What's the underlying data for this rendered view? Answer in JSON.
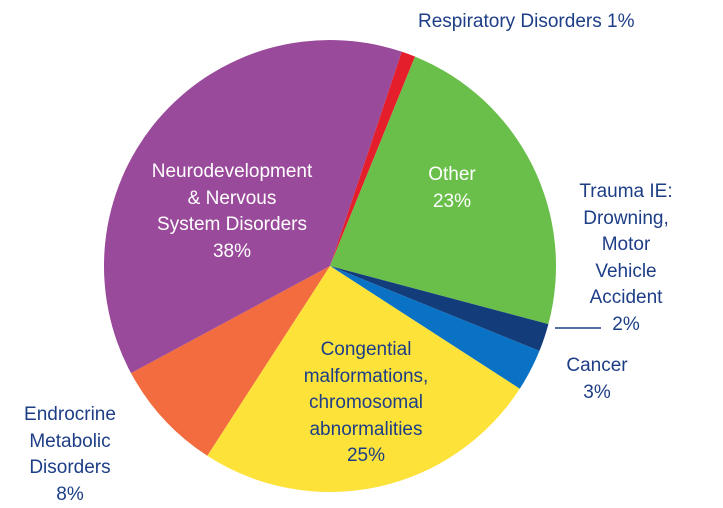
{
  "chart_data": {
    "type": "pie",
    "categories": [
      "Respiratory Disorders",
      "Other",
      "Trauma IE:\nDrowning,\nMotor Vehicle\nAccident",
      "Cancer",
      "Congential\nmalformations,\nchromosomal\nabnormalities",
      "Endrocrine\nMetabolic\nDisorders",
      "Neurodevelopment\n& Nervous\nSystem Disorders"
    ],
    "values": [
      1,
      23,
      2,
      3,
      25,
      8,
      38
    ],
    "value_labels": [
      "1%",
      "23%",
      "2%",
      "3%",
      "25%",
      "8%",
      "38%"
    ],
    "colors": [
      "#e41e2b",
      "#6abf4b",
      "#123c7a",
      "#0a72c4",
      "#fde23a",
      "#f26c3f",
      "#9a4a9a"
    ]
  }
}
